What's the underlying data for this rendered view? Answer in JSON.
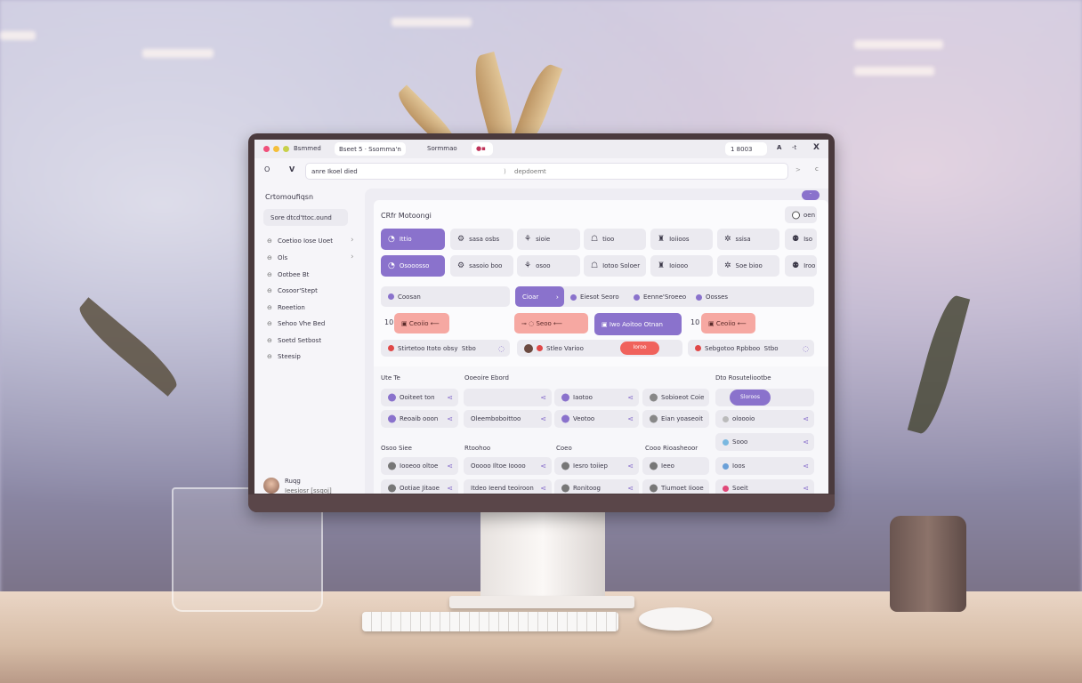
{
  "window": {
    "tabs": [
      "Bsmmed",
      "Bseet 5 · Ssomma'n",
      "Sormmao",
      ""
    ],
    "zoom": "1  8003",
    "font_btn": "A",
    "minimize": "-t",
    "close": "X"
  },
  "address": {
    "back": "O",
    "logo": "V",
    "url": "anre Ikoel died",
    "search_placeholder": "depdoemt",
    "go": ">",
    "reload": "c"
  },
  "sidebar": {
    "title": "Crtomoufiqsn",
    "search": "Sore dtcd'ttoc.ound",
    "items": [
      "Coetioo Iose Uoet",
      "Ols",
      "Ootbee Bt",
      "Cosoor'Stept",
      "Roeetion",
      "Sehoo Vhe Bed",
      "Soetd Setbost",
      "Steesip"
    ],
    "user": {
      "name": "Ruqg",
      "role": "Ieesiosr  [ssqoj]"
    }
  },
  "main": {
    "title": "CRfr Motoongi",
    "toggle": "oen",
    "top_button": "·",
    "grid_row1": [
      "Ittio",
      "sasa osbs",
      "sioie",
      "tioo",
      "Ioiioos",
      "ssisa",
      "Iso"
    ],
    "grid_row2": [
      "Osooosso",
      "sasoio boo",
      "osoo",
      "Iotoo Soloer",
      "Ioiooo",
      "Soe bioo",
      "Iroo"
    ],
    "filters": [
      "Coosan",
      "Cioar",
      "Eiesot Seoro",
      "Eenne'Sroeeo",
      "Oosses"
    ],
    "tags": [
      "10",
      "Ceoiio",
      "Seoo",
      "Iwo Aoitoo Otnan",
      "10",
      "Ceoiio"
    ],
    "pills": [
      {
        "text": "Stirtetoo Itoto obsy",
        "meta": "Stbo"
      },
      {
        "text": "Stleo Varioo",
        "button": "Ioroo"
      },
      {
        "text": "Sebgotoo Rpbboo",
        "meta": "Stbo"
      }
    ],
    "sections": {
      "a": "Ute Te",
      "b": "Ooeoire Ebord",
      "c": "Dto Rosuteliootbe",
      "d": "Osoo Siee",
      "e": "Rtoohoo",
      "f": "Coeo",
      "g": "Cooo Rioasheoor"
    },
    "cells1": [
      "Ooiteet ton",
      "",
      "Iaotoo",
      "Sobioeot Coie"
    ],
    "cells2": [
      "Reoaib ooon",
      "Oleemboboittoo",
      "Veotoo",
      "Eian yoaseoit"
    ],
    "cells3": [
      "Iooeoo oltoe",
      "Ooooo Iltoe Ioooo",
      "Iesro toiiep",
      "Ieeo"
    ],
    "cells4": [
      "Ootiae Jitaoe",
      "Itdeo Ieend teoiroon",
      "Ronitoog",
      "Tiumoet Iiooe"
    ],
    "right": [
      "Sloroos",
      "oloooio",
      "Sooo",
      "Ioos",
      "Soeit"
    ]
  },
  "colors": {
    "accent": "#8a72cc",
    "alert": "#f6a8a2",
    "danger": "#f0625c"
  }
}
